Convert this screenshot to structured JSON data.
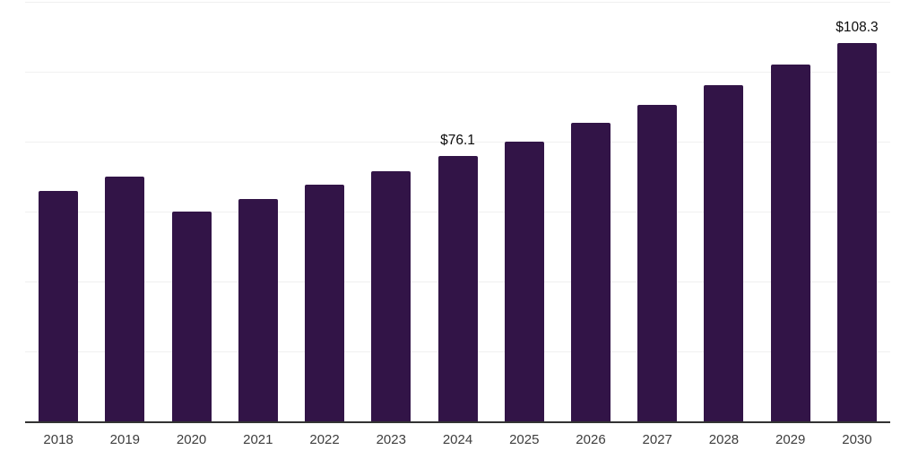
{
  "chart_data": {
    "type": "bar",
    "title": "",
    "xlabel": "",
    "ylabel": "",
    "categories": [
      "2018",
      "2019",
      "2020",
      "2021",
      "2022",
      "2023",
      "2024",
      "2025",
      "2026",
      "2027",
      "2028",
      "2029",
      "2030"
    ],
    "values": [
      66.0,
      70.0,
      60.1,
      63.8,
      67.7,
      71.6,
      76.1,
      80.2,
      85.4,
      90.5,
      96.1,
      102.1,
      108.3
    ],
    "annotations": [
      {
        "index": 6,
        "text": "$76.1"
      },
      {
        "index": 12,
        "text": "$108.3"
      }
    ],
    "ylim": [
      0,
      120
    ],
    "gridline_step": 20,
    "grid": true,
    "legend": false,
    "bar_color": "#321447",
    "axis_color": "#333333",
    "gridline_color": "#f0f0f0",
    "tick_label_color": "#3d3d3d",
    "value_label_color": "#0d0d0d"
  }
}
